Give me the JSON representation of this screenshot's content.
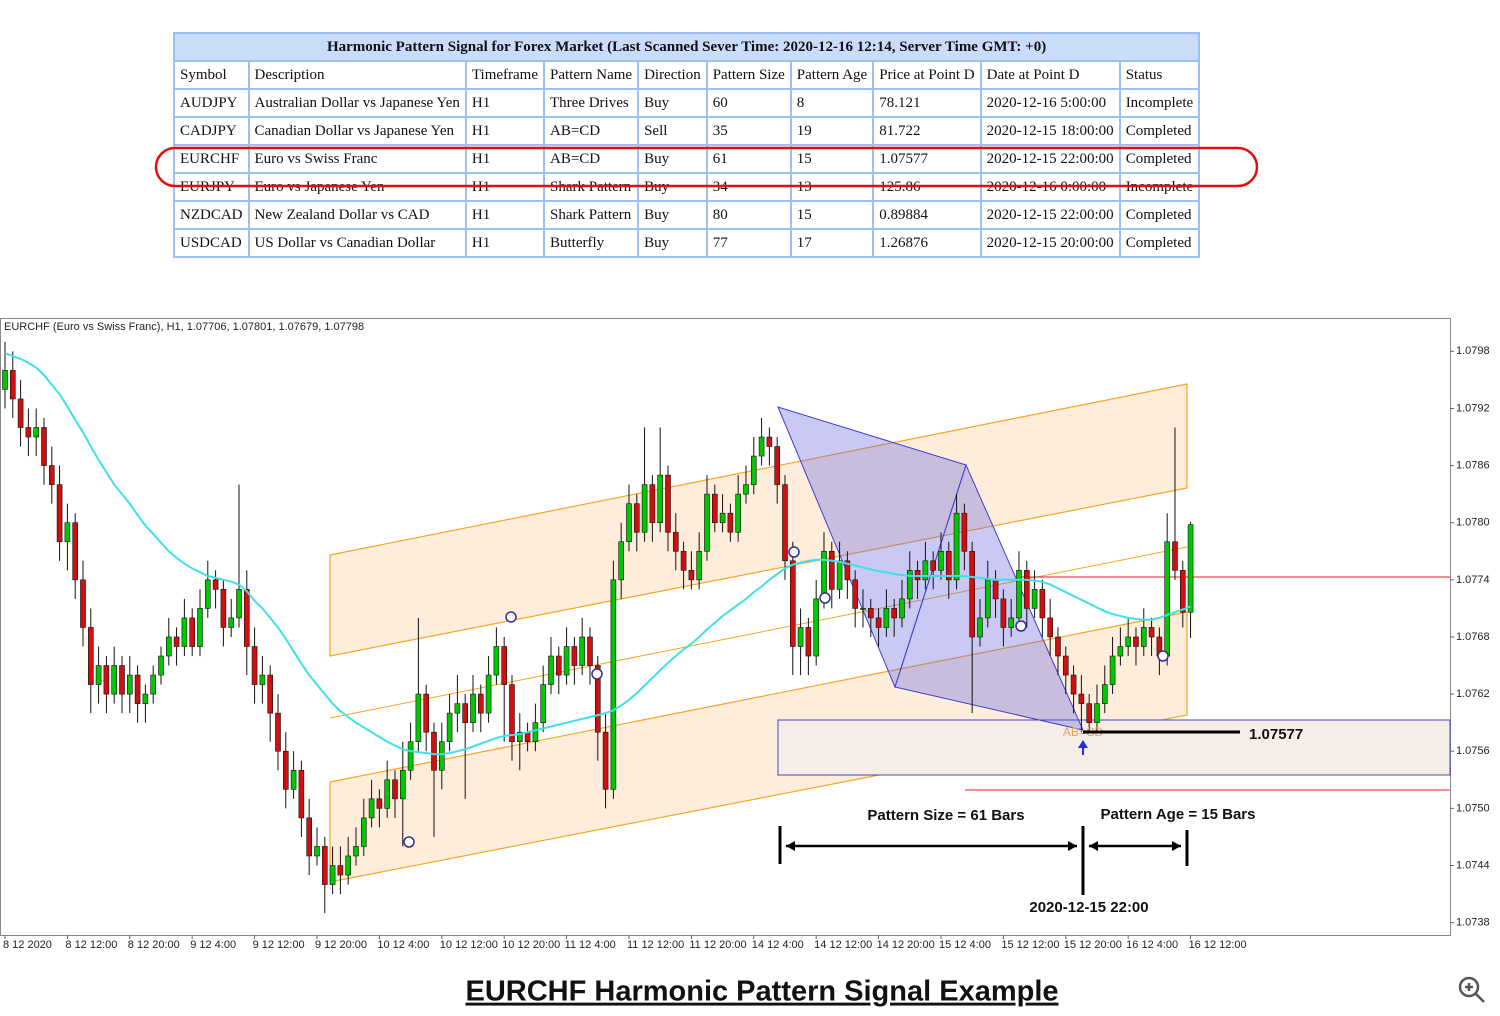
{
  "table": {
    "title": "Harmonic Pattern Signal for Forex Market (Last Scanned Sever Time: 2020-12-16 12:14, Server Time GMT: +0)",
    "columns": [
      "Symbol",
      "Description",
      "Timeframe",
      "Pattern Name",
      "Direction",
      "Pattern Size",
      "Pattern Age",
      "Price at Point D",
      "Date at Point D",
      "Status"
    ],
    "rows": [
      [
        "AUDJPY",
        "Australian Dollar vs Japanese Yen",
        "H1",
        "Three Drives",
        "Buy",
        "60",
        "8",
        "78.121",
        "2020-12-16 5:00:00",
        "Incomplete"
      ],
      [
        "CADJPY",
        "Canadian Dollar vs Japanese Yen",
        "H1",
        "AB=CD",
        "Sell",
        "35",
        "19",
        "81.722",
        "2020-12-15 18:00:00",
        "Completed"
      ],
      [
        "EURCHF",
        "Euro vs Swiss Franc",
        "H1",
        "AB=CD",
        "Buy",
        "61",
        "15",
        "1.07577",
        "2020-12-15 22:00:00",
        "Completed"
      ],
      [
        "EURJPY",
        "Euro vs Japanese Yen",
        "H1",
        "Shark Pattern",
        "Buy",
        "34",
        "13",
        "125.86",
        "2020-12-16 0:00:00",
        "Incomplete"
      ],
      [
        "NZDCAD",
        "New Zealand Dollar vs CAD",
        "H1",
        "Shark Pattern",
        "Buy",
        "80",
        "15",
        "0.89884",
        "2020-12-15 22:00:00",
        "Completed"
      ],
      [
        "USDCAD",
        "US Dollar vs Canadian Dollar",
        "H1",
        "Butterfly",
        "Buy",
        "77",
        "17",
        "1.26876",
        "2020-12-15 20:00:00",
        "Completed"
      ]
    ]
  },
  "chart_data": {
    "type": "candlestick",
    "title": "EURCHF (Euro vs Swiss Franc), H1, 1.07706, 1.07801, 1.07679, 1.07798",
    "up_color": "#00c800",
    "down_color": "#d01010",
    "xlim": [
      -0.64,
      185.26
    ],
    "ylim": [
      1.07367,
      1.08015
    ],
    "yticks": [
      1.0798,
      1.0792,
      1.0786,
      {
        "value": 1.078,
        "label": "1.0780"
      },
      1.0774,
      1.0768,
      1.0762,
      1.0756,
      {
        "value": 1.075,
        "label": "1.0750"
      },
      1.0744,
      1.0738
    ],
    "xticks": [
      {
        "value": 0,
        "label": "8 12 2020"
      },
      {
        "value": 8,
        "label": "8 12 12:00"
      },
      {
        "value": 16,
        "label": "8 12 20:00"
      },
      {
        "value": 24,
        "label": "9 12 4:00"
      },
      {
        "value": 32,
        "label": "9 12 12:00"
      },
      {
        "value": 40,
        "label": "9 12 20:00"
      },
      {
        "value": 48,
        "label": "10 12 4:00"
      },
      {
        "value": 56,
        "label": "10 12 12:00"
      },
      {
        "value": 64,
        "label": "10 12 20:00"
      },
      {
        "value": 72,
        "label": "11 12 4:00"
      },
      {
        "value": 80,
        "label": "11 12 12:00"
      },
      {
        "value": 88,
        "label": "11 12 20:00"
      },
      {
        "value": 96,
        "label": "14 12 4:00"
      },
      {
        "value": 104,
        "label": "14 12 12:00"
      },
      {
        "value": 112,
        "label": "14 12 20:00"
      },
      {
        "value": 120,
        "label": "15 12 4:00"
      },
      {
        "value": 128,
        "label": "15 12 12:00"
      },
      {
        "value": 136,
        "label": "15 12 20:00"
      },
      {
        "value": 144,
        "label": "16 12 4:00"
      },
      {
        "value": 152,
        "label": "16 12 12:00"
      }
    ],
    "candles": [
      [
        1.0794,
        1.0799,
        1.0792,
        1.0796
      ],
      [
        1.0796,
        1.0798,
        1.0791,
        1.0793
      ],
      [
        1.0793,
        1.0795,
        1.0788,
        1.079
      ],
      [
        1.079,
        1.0792,
        1.0787,
        1.0789
      ],
      [
        1.0789,
        1.0792,
        1.0787,
        1.079
      ],
      [
        1.079,
        1.0791,
        1.0784,
        1.0786
      ],
      [
        1.0786,
        1.0788,
        1.0782,
        1.0784
      ],
      [
        1.0784,
        1.0786,
        1.0776,
        1.0778
      ],
      [
        1.0778,
        1.0782,
        1.0775,
        1.078
      ],
      [
        1.078,
        1.0781,
        1.0772,
        1.0774
      ],
      [
        1.0774,
        1.0776,
        1.0767,
        1.0769
      ],
      [
        1.0769,
        1.0771,
        1.076,
        1.0763
      ],
      [
        1.0763,
        1.0767,
        1.0761,
        1.0765
      ],
      [
        1.0765,
        1.0766,
        1.076,
        1.0762
      ],
      [
        1.0762,
        1.0767,
        1.0761,
        1.0765
      ],
      [
        1.0765,
        1.0766,
        1.076,
        1.0762
      ],
      [
        1.0762,
        1.0766,
        1.076,
        1.0764
      ],
      [
        1.0764,
        1.0765,
        1.0759,
        1.0761
      ],
      [
        1.0761,
        1.0763,
        1.0759,
        1.0762
      ],
      [
        1.0762,
        1.0765,
        1.0761,
        1.0764
      ],
      [
        1.0764,
        1.0767,
        1.0763,
        1.0766
      ],
      [
        1.0766,
        1.077,
        1.0765,
        1.0768
      ],
      [
        1.0768,
        1.0769,
        1.0765,
        1.0767
      ],
      [
        1.0767,
        1.0772,
        1.0766,
        1.077
      ],
      [
        1.077,
        1.0771,
        1.0766,
        1.0767
      ],
      [
        1.0767,
        1.0773,
        1.0766,
        1.0771
      ],
      [
        1.0771,
        1.0776,
        1.077,
        1.0774
      ],
      [
        1.0774,
        1.0775,
        1.0771,
        1.0773
      ],
      [
        1.0773,
        1.0774,
        1.0767,
        1.0769
      ],
      [
        1.0769,
        1.0772,
        1.0768,
        1.077
      ],
      [
        1.077,
        1.0784,
        1.0769,
        1.0773
      ],
      [
        1.0773,
        1.0775,
        1.0764,
        1.0767
      ],
      [
        1.0767,
        1.0769,
        1.0761,
        1.0763
      ],
      [
        1.0763,
        1.0766,
        1.0761,
        1.0764
      ],
      [
        1.0764,
        1.0765,
        1.0757,
        1.076
      ],
      [
        1.076,
        1.0762,
        1.0754,
        1.0756
      ],
      [
        1.0756,
        1.0758,
        1.075,
        1.0752
      ],
      [
        1.0752,
        1.0756,
        1.0751,
        1.0754
      ],
      [
        1.0754,
        1.0755,
        1.0747,
        1.0749
      ],
      [
        1.0749,
        1.0751,
        1.0743,
        1.0745
      ],
      [
        1.0745,
        1.0748,
        1.0744,
        1.0746
      ],
      [
        1.0746,
        1.0747,
        1.0739,
        1.0742
      ],
      [
        1.0742,
        1.0746,
        1.0741,
        1.0744
      ],
      [
        1.0744,
        1.0746,
        1.0741,
        1.0743
      ],
      [
        1.0743,
        1.0747,
        1.0742,
        1.0745
      ],
      [
        1.0745,
        1.0748,
        1.0744,
        1.0746
      ],
      [
        1.0746,
        1.0751,
        1.0745,
        1.0749
      ],
      [
        1.0749,
        1.0753,
        1.0748,
        1.0751
      ],
      [
        1.0751,
        1.0752,
        1.0748,
        1.075
      ],
      [
        1.075,
        1.0755,
        1.0749,
        1.0753
      ],
      [
        1.0753,
        1.0754,
        1.0749,
        1.0751
      ],
      [
        1.0751,
        1.0757,
        1.0746,
        1.0754
      ],
      [
        1.0754,
        1.0759,
        1.0753,
        1.0757
      ],
      [
        1.0757,
        1.077,
        1.0756,
        1.0762
      ],
      [
        1.0762,
        1.0763,
        1.0756,
        1.0758
      ],
      [
        1.0758,
        1.0759,
        1.0747,
        1.0754
      ],
      [
        1.0754,
        1.0759,
        1.0752,
        1.0757
      ],
      [
        1.0757,
        1.0762,
        1.0756,
        1.076
      ],
      [
        1.076,
        1.0764,
        1.0758,
        1.0761
      ],
      [
        1.0761,
        1.0762,
        1.0751,
        1.0759
      ],
      [
        1.0759,
        1.0764,
        1.0758,
        1.0762
      ],
      [
        1.0762,
        1.0763,
        1.0758,
        1.076
      ],
      [
        1.076,
        1.0766,
        1.0759,
        1.0764
      ],
      [
        1.0764,
        1.0769,
        1.0763,
        1.0767
      ],
      [
        1.0767,
        1.0768,
        1.0757,
        1.0763
      ],
      [
        1.0763,
        1.0764,
        1.0755,
        1.0757
      ],
      [
        1.0757,
        1.076,
        1.0754,
        1.0758
      ],
      [
        1.0758,
        1.0759,
        1.0756,
        1.0757
      ],
      [
        1.0757,
        1.0761,
        1.0756,
        1.0759
      ],
      [
        1.0759,
        1.0765,
        1.0758,
        1.0763
      ],
      [
        1.0763,
        1.0768,
        1.0762,
        1.0766
      ],
      [
        1.0766,
        1.0767,
        1.0762,
        1.0764
      ],
      [
        1.0764,
        1.0769,
        1.0763,
        1.0767
      ],
      [
        1.0767,
        1.0768,
        1.0763,
        1.0765
      ],
      [
        1.0765,
        1.077,
        1.0764,
        1.0768
      ],
      [
        1.0768,
        1.0769,
        1.0763,
        1.0765
      ],
      [
        1.0765,
        1.0766,
        1.0755,
        1.0758
      ],
      [
        1.0758,
        1.076,
        1.075,
        1.0752
      ],
      [
        1.0752,
        1.0776,
        1.0751,
        1.0774
      ],
      [
        1.0774,
        1.078,
        1.0772,
        1.0778
      ],
      [
        1.0778,
        1.0784,
        1.0777,
        1.0782
      ],
      [
        1.0782,
        1.0783,
        1.0777,
        1.0779
      ],
      [
        1.0779,
        1.079,
        1.0778,
        1.0784
      ],
      [
        1.0784,
        1.0785,
        1.0778,
        1.078
      ],
      [
        1.078,
        1.079,
        1.0779,
        1.0785
      ],
      [
        1.0785,
        1.0786,
        1.0777,
        1.0779
      ],
      [
        1.0779,
        1.0781,
        1.0775,
        1.0777
      ],
      [
        1.0777,
        1.0778,
        1.0773,
        1.0775
      ],
      [
        1.0775,
        1.0777,
        1.0773,
        1.0774
      ],
      [
        1.0774,
        1.0779,
        1.0773,
        1.0777
      ],
      [
        1.0777,
        1.0785,
        1.0776,
        1.0783
      ],
      [
        1.0783,
        1.0784,
        1.0779,
        1.078
      ],
      [
        1.078,
        1.0783,
        1.0779,
        1.0781
      ],
      [
        1.0781,
        1.0782,
        1.0778,
        1.0779
      ],
      [
        1.0779,
        1.0785,
        1.0778,
        1.0783
      ],
      [
        1.0783,
        1.0786,
        1.0782,
        1.0784
      ],
      [
        1.0784,
        1.0789,
        1.0783,
        1.0787
      ],
      [
        1.0787,
        1.0791,
        1.0786,
        1.0789
      ],
      [
        1.0789,
        1.079,
        1.0786,
        1.0788
      ],
      [
        1.0788,
        1.0789,
        1.0782,
        1.0784
      ],
      [
        1.0784,
        1.0785,
        1.0774,
        1.0776
      ],
      [
        1.0776,
        1.0778,
        1.0764,
        1.0767
      ],
      [
        1.0767,
        1.0771,
        1.0764,
        1.0769
      ],
      [
        1.0769,
        1.077,
        1.0764,
        1.0766
      ],
      [
        1.0766,
        1.0774,
        1.0765,
        1.0772
      ],
      [
        1.0772,
        1.0779,
        1.0771,
        1.0777
      ],
      [
        1.0777,
        1.0778,
        1.0771,
        1.0773
      ],
      [
        1.0773,
        1.0778,
        1.0772,
        1.0776
      ],
      [
        1.0776,
        1.0777,
        1.0772,
        1.0774
      ],
      [
        1.0774,
        1.0775,
        1.0769,
        1.0771
      ],
      [
        1.0771,
        1.0773,
        1.0769,
        1.0771
      ],
      [
        1.0771,
        1.0772,
        1.0768,
        1.077
      ],
      [
        1.077,
        1.0771,
        1.0767,
        1.0769
      ],
      [
        1.0769,
        1.0773,
        1.0768,
        1.0771
      ],
      [
        1.0771,
        1.0772,
        1.0768,
        1.077
      ],
      [
        1.077,
        1.0774,
        1.0769,
        1.0772
      ],
      [
        1.0772,
        1.0777,
        1.0771,
        1.0775
      ],
      [
        1.0775,
        1.0776,
        1.0772,
        1.0774
      ],
      [
        1.0774,
        1.0778,
        1.0773,
        1.0776
      ],
      [
        1.0776,
        1.0777,
        1.0773,
        1.0775
      ],
      [
        1.0775,
        1.0779,
        1.0774,
        1.0777
      ],
      [
        1.0777,
        1.0778,
        1.0772,
        1.0774
      ],
      [
        1.0774,
        1.0783,
        1.0773,
        1.0781
      ],
      [
        1.0781,
        1.0782,
        1.0775,
        1.0777
      ],
      [
        1.0777,
        1.0778,
        1.076,
        1.0768
      ],
      [
        1.0768,
        1.0772,
        1.0767,
        1.077
      ],
      [
        1.077,
        1.0776,
        1.0769,
        1.0774
      ],
      [
        1.0774,
        1.0775,
        1.077,
        1.0772
      ],
      [
        1.0772,
        1.0773,
        1.0767,
        1.0769
      ],
      [
        1.0769,
        1.0772,
        1.0768,
        1.077
      ],
      [
        1.077,
        1.0777,
        1.0769,
        1.0775
      ],
      [
        1.0775,
        1.0776,
        1.0769,
        1.0771
      ],
      [
        1.0771,
        1.0775,
        1.077,
        1.0773
      ],
      [
        1.0773,
        1.0774,
        1.0768,
        1.077
      ],
      [
        1.077,
        1.0772,
        1.0766,
        1.0768
      ],
      [
        1.0768,
        1.0769,
        1.0764,
        1.0766
      ],
      [
        1.0766,
        1.0767,
        1.0762,
        1.0764
      ],
      [
        1.0764,
        1.0765,
        1.076,
        1.0762
      ],
      [
        1.0762,
        1.0764,
        1.0758,
        1.0761
      ],
      [
        1.0761,
        1.0762,
        1.0758,
        1.0759
      ],
      [
        1.0759,
        1.0763,
        1.0758,
        1.0761
      ],
      [
        1.0761,
        1.0765,
        1.076,
        1.0763
      ],
      [
        1.0763,
        1.0768,
        1.0762,
        1.0766
      ],
      [
        1.0766,
        1.0769,
        1.0765,
        1.0767
      ],
      [
        1.0767,
        1.077,
        1.0766,
        1.0768
      ],
      [
        1.0768,
        1.0769,
        1.0765,
        1.0767
      ],
      [
        1.0767,
        1.0771,
        1.0766,
        1.0769
      ],
      [
        1.0769,
        1.077,
        1.0766,
        1.0768
      ],
      [
        1.0768,
        1.0769,
        1.0764,
        1.0766
      ],
      [
        1.0766,
        1.0781,
        1.0765,
        1.0778
      ],
      [
        1.0778,
        1.079,
        1.0774,
        1.0775
      ],
      [
        1.0775,
        1.0776,
        1.0769,
        1.07706
      ],
      [
        1.07706,
        1.07801,
        1.07679,
        1.07798
      ]
    ],
    "ma": {
      "color": "#40e0e8",
      "values": [
        1.07978,
        1.07975,
        1.07972,
        1.07968,
        1.07963,
        1.07955,
        1.07945,
        1.07935,
        1.07922,
        1.07908,
        1.07895,
        1.0788,
        1.07866,
        1.07853,
        1.0784,
        1.0783,
        1.0782,
        1.07808,
        1.07797,
        1.07788,
        1.07779,
        1.0777,
        1.07763,
        1.07757,
        1.07752,
        1.07748,
        1.07744,
        1.07742,
        1.0774,
        1.07738,
        1.07735,
        1.07728,
        1.07718,
        1.0771,
        1.077,
        1.0769,
        1.07678,
        1.07665,
        1.07652,
        1.0764,
        1.0763,
        1.0762,
        1.0761,
        1.07602,
        1.07596,
        1.0759,
        1.07585,
        1.0758,
        1.07575,
        1.0757,
        1.07566,
        1.07562,
        1.0756,
        1.07559,
        1.07558,
        1.07557,
        1.07557,
        1.07558,
        1.0756,
        1.07562,
        1.07565,
        1.07568,
        1.07571,
        1.07574,
        1.07576,
        1.07577,
        1.07578,
        1.0758,
        1.07582,
        1.07584,
        1.07586,
        1.07588,
        1.0759,
        1.07592,
        1.07594,
        1.07596,
        1.07598,
        1.076,
        1.07603,
        1.07608,
        1.07614,
        1.07621,
        1.07629,
        1.07637,
        1.07645,
        1.07653,
        1.0766,
        1.07667,
        1.07673,
        1.0768,
        1.07688,
        1.07695,
        1.07702,
        1.07708,
        1.07714,
        1.0772,
        1.07727,
        1.07733,
        1.0774,
        1.07746,
        1.07752,
        1.07756,
        1.07758,
        1.0776,
        1.07761,
        1.07761,
        1.0776,
        1.07759,
        1.07757,
        1.07755,
        1.07753,
        1.07751,
        1.07749,
        1.07748,
        1.07746,
        1.07745,
        1.07744,
        1.07744,
        1.07744,
        1.07744,
        1.07744,
        1.07744,
        1.07744,
        1.07744,
        1.07743,
        1.07742,
        1.07741,
        1.0774,
        1.0774,
        1.0774,
        1.0774,
        1.0774,
        1.07739,
        1.07738,
        1.07735,
        1.07731,
        1.07727,
        1.07723,
        1.07719,
        1.07715,
        1.07711,
        1.07707,
        1.07704,
        1.07702,
        1.077,
        1.07699,
        1.07698,
        1.07698,
        1.077,
        1.07703,
        1.07706,
        1.07709,
        1.07712
      ]
    },
    "annotations": {
      "pattern": "AB=CD",
      "price": "1.07577",
      "pattern_size": "Pattern Size = 61 Bars",
      "pattern_age": "Pattern Age = 15 Bars",
      "date": "2020-12-15 22:00"
    }
  },
  "caption": "EURCHF Harmonic Pattern Signal Example"
}
